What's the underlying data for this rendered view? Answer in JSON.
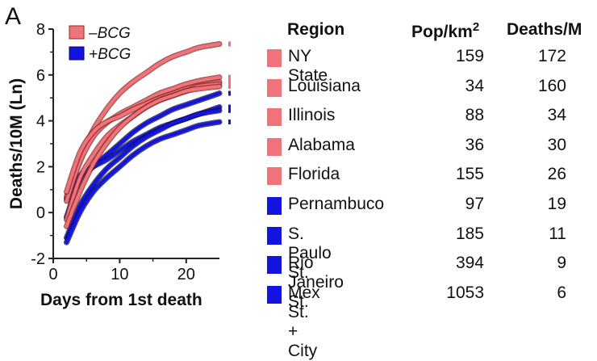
{
  "panel_label": "A",
  "colors": {
    "noBCG": "#f0737a",
    "noBCG_outline": "#8a2a2a",
    "BCG": "#1414e0",
    "BCG_outline": "#0a0a50"
  },
  "chart_data": {
    "type": "line",
    "title": "",
    "xlabel": "Days from 1st death",
    "ylabel": "Deaths/10M (Ln)",
    "xlim": [
      0,
      25
    ],
    "ylim": [
      -2,
      8
    ],
    "xticks": [
      0,
      10,
      20
    ],
    "yticks": [
      -2,
      0,
      2,
      4,
      6,
      8
    ],
    "legend": {
      "position": "top-left",
      "entries": [
        {
          "label": "–BCG",
          "group": "noBCG"
        },
        {
          "label": "+BCG",
          "group": "BCG"
        }
      ]
    },
    "series": [
      {
        "name": "NY State",
        "group": "noBCG",
        "x": [
          2,
          4,
          6,
          8,
          10,
          12,
          14,
          16,
          18,
          20,
          22,
          25
        ],
        "y": [
          0.7,
          2.3,
          3.6,
          4.5,
          5.2,
          5.7,
          6.1,
          6.5,
          6.8,
          7.0,
          7.2,
          7.35
        ]
      },
      {
        "name": "Louisiana",
        "group": "noBCG",
        "x": [
          2,
          4,
          6,
          8,
          10,
          12,
          14,
          16,
          18,
          20,
          22,
          25
        ],
        "y": [
          0.5,
          2.2,
          3.3,
          3.9,
          4.3,
          4.6,
          4.9,
          5.2,
          5.4,
          5.6,
          5.75,
          5.9
        ]
      },
      {
        "name": "Illinois",
        "group": "noBCG",
        "x": [
          2,
          4,
          6,
          8,
          10,
          12,
          14,
          16,
          18,
          20,
          22,
          25
        ],
        "y": [
          0.9,
          2.6,
          3.5,
          3.95,
          4.2,
          4.5,
          4.75,
          5.0,
          5.2,
          5.4,
          5.55,
          5.7
        ]
      },
      {
        "name": "Alabama",
        "group": "noBCG",
        "x": [
          2,
          4,
          6,
          8,
          10,
          12,
          14,
          16,
          18,
          20,
          22,
          25
        ],
        "y": [
          -0.3,
          1.5,
          2.5,
          3.3,
          3.8,
          4.2,
          4.6,
          4.9,
          5.1,
          5.3,
          5.5,
          5.6
        ]
      },
      {
        "name": "Florida",
        "group": "noBCG",
        "x": [
          2,
          4,
          6,
          8,
          10,
          12,
          14,
          16,
          18,
          20,
          22,
          25
        ],
        "y": [
          -0.6,
          0.9,
          2.1,
          3.0,
          3.7,
          4.2,
          4.6,
          4.9,
          5.1,
          5.3,
          5.4,
          5.5
        ]
      },
      {
        "name": "Pernambuco",
        "group": "BCG",
        "x": [
          2,
          4,
          6,
          8,
          10,
          12,
          14,
          16,
          18,
          20,
          22,
          25
        ],
        "y": [
          -0.2,
          1.4,
          2.0,
          2.5,
          3.0,
          3.5,
          3.9,
          4.2,
          4.5,
          4.7,
          4.9,
          5.2
        ]
      },
      {
        "name": "S. Paulo St.",
        "group": "BCG",
        "x": [
          2,
          4,
          6,
          8,
          10,
          12,
          14,
          16,
          18,
          20,
          22,
          25
        ],
        "y": [
          0.6,
          1.6,
          2.0,
          2.3,
          2.7,
          3.1,
          3.4,
          3.7,
          3.9,
          4.1,
          4.3,
          4.6
        ]
      },
      {
        "name": "Rio Janeiro St.",
        "group": "BCG",
        "x": [
          2,
          4,
          6,
          8,
          10,
          12,
          14,
          16,
          18,
          20,
          22,
          25
        ],
        "y": [
          -1.1,
          0.3,
          1.2,
          1.9,
          2.4,
          2.9,
          3.3,
          3.6,
          3.9,
          4.1,
          4.3,
          4.45
        ]
      },
      {
        "name": "Mex St.+City",
        "group": "BCG",
        "x": [
          2,
          4,
          6,
          8,
          10,
          12,
          14,
          16,
          18,
          20,
          22,
          25
        ],
        "y": [
          -1.3,
          0.0,
          0.9,
          1.5,
          2.0,
          2.5,
          2.9,
          3.2,
          3.4,
          3.6,
          3.8,
          3.95
        ]
      }
    ]
  },
  "table": {
    "headers": {
      "region": "Region",
      "pop_main": "Pop/km",
      "pop_sup": "2",
      "deaths": "Deaths/M"
    },
    "rows": [
      {
        "region": "NY State",
        "pop": "159",
        "deaths": "172",
        "group": "noBCG"
      },
      {
        "region": "Louisiana",
        "pop": "34",
        "deaths": "160",
        "group": "noBCG"
      },
      {
        "region": "Illinois",
        "pop": "88",
        "deaths": "34",
        "group": "noBCG"
      },
      {
        "region": "Alabama",
        "pop": "36",
        "deaths": "30",
        "group": "noBCG"
      },
      {
        "region": "Florida",
        "pop": "155",
        "deaths": "26",
        "group": "noBCG"
      },
      {
        "region": "Pernambuco",
        "pop": "97",
        "deaths": "19",
        "group": "BCG"
      },
      {
        "region": "S. Paulo St.",
        "pop": "185",
        "deaths": "11",
        "group": "BCG"
      },
      {
        "region": "Rio Janeiro St.",
        "pop": "394",
        "deaths": "9",
        "group": "BCG"
      },
      {
        "region": "Mex St. + City",
        "pop": "1053",
        "deaths": "6",
        "group": "BCG"
      }
    ]
  }
}
